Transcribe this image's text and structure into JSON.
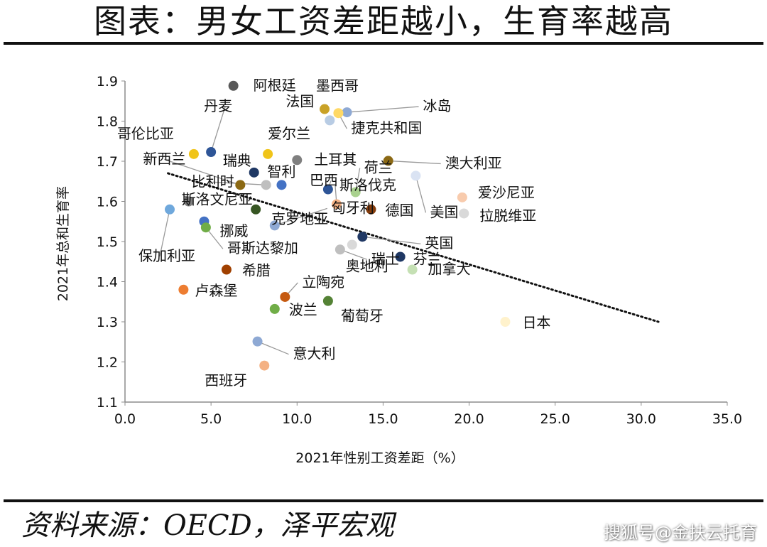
{
  "header": {
    "title": "图表：男女工资差距越小，生育率越高"
  },
  "footer": {
    "source": "资料来源：OECD，泽平宏观",
    "watermark": "搜狐号@金扶云托育"
  },
  "chart_data": {
    "type": "scatter",
    "title": "",
    "xlabel": "2021年性别工资差距（%）",
    "ylabel": "2021年总和生育率",
    "xlim": [
      0,
      35
    ],
    "ylim": [
      1.1,
      1.9
    ],
    "xticks": [
      "0.0",
      "5.0",
      "10.0",
      "15.0",
      "20.0",
      "25.0",
      "30.0",
      "35.0"
    ],
    "yticks": [
      "1.1",
      "1.2",
      "1.3",
      "1.4",
      "1.5",
      "1.6",
      "1.7",
      "1.8",
      "1.9"
    ],
    "grid": false,
    "trendline": {
      "style": "dotted",
      "from": [
        2.5,
        1.67
      ],
      "to": [
        31.0,
        1.3
      ]
    },
    "points": [
      {
        "label": "阿根廷",
        "x": 6.3,
        "y": 1.888,
        "color": "#595959"
      },
      {
        "label": "墨西哥",
        "x": 11.6,
        "y": 1.83,
        "color": "#c9a227"
      },
      {
        "label": "冰岛",
        "x": 12.9,
        "y": 1.822,
        "color": "#8ea9d4"
      },
      {
        "label": "法国",
        "x": 11.9,
        "y": 1.802,
        "color": "#b8cce4"
      },
      {
        "label": "捷克共和国",
        "x": 12.4,
        "y": 1.82,
        "color": "#ffd966"
      },
      {
        "label": "丹麦",
        "x": 5.0,
        "y": 1.723,
        "color": "#2e5597"
      },
      {
        "label": "哥伦比亚",
        "x": 4.0,
        "y": 1.718,
        "color": "#f0c419"
      },
      {
        "label": "爱尔兰",
        "x": 8.3,
        "y": 1.718,
        "color": "#f0c419"
      },
      {
        "label": "土耳其",
        "x": 10.0,
        "y": 1.703,
        "color": "#7f7f7f"
      },
      {
        "label": "澳大利亚",
        "x": 15.3,
        "y": 1.701,
        "color": "#8b6914"
      },
      {
        "label": "瑞典",
        "x": 7.5,
        "y": 1.672,
        "color": "#1f3864"
      },
      {
        "label": "智利",
        "x": 9.1,
        "y": 1.641,
        "color": "#4472c4"
      },
      {
        "label": "新西兰",
        "x": 6.7,
        "y": 1.641,
        "color": "#8b6914"
      },
      {
        "label": "比利时",
        "x": 8.2,
        "y": 1.641,
        "color": "#bfbfbf"
      },
      {
        "label": "巴西",
        "x": 11.8,
        "y": 1.63,
        "color": "#2e5597"
      },
      {
        "label": "荷兰",
        "x": 13.4,
        "y": 1.623,
        "color": "#a9d18e"
      },
      {
        "label": "斯洛伐克",
        "x": 12.3,
        "y": 1.593,
        "color": "#f4b183"
      },
      {
        "label": "美国",
        "x": 16.9,
        "y": 1.664,
        "color": "#dae3f3"
      },
      {
        "label": "爱沙尼亚",
        "x": 19.6,
        "y": 1.61,
        "color": "#f8cbad"
      },
      {
        "label": "拉脱维亚",
        "x": 19.7,
        "y": 1.57,
        "color": "#d9d9d9"
      },
      {
        "label": "德国",
        "x": 14.3,
        "y": 1.58,
        "color": "#843c0c"
      },
      {
        "label": "斯洛文尼亚",
        "x": 3.7,
        "y": 1.6,
        "color": "#7f7f7f"
      },
      {
        "label": "保加利亚",
        "x": 2.6,
        "y": 1.58,
        "color": "#6fa8dc"
      },
      {
        "label": "克罗地亚",
        "x": 7.6,
        "y": 1.58,
        "color": "#375623"
      },
      {
        "label": "挪威",
        "x": 4.6,
        "y": 1.55,
        "color": "#4472c4"
      },
      {
        "label": "哥斯达黎加",
        "x": 4.7,
        "y": 1.535,
        "color": "#70ad47"
      },
      {
        "label": "匈牙利",
        "x": 8.7,
        "y": 1.54,
        "color": "#8ea9d4"
      },
      {
        "label": "英国",
        "x": 13.8,
        "y": 1.512,
        "color": "#203864"
      },
      {
        "label": "瑞士",
        "x": 12.5,
        "y": 1.48,
        "color": "#bfbfbf"
      },
      {
        "label": "芬兰",
        "x": 16.0,
        "y": 1.462,
        "color": "#1f3864"
      },
      {
        "label": "加拿大",
        "x": 16.7,
        "y": 1.43,
        "color": "#c5e0b4"
      },
      {
        "label": "希腊",
        "x": 5.9,
        "y": 1.43,
        "color": "#a04000"
      },
      {
        "label": "奥地利",
        "x": 13.2,
        "y": 1.492,
        "color": "#d9d9d9"
      },
      {
        "label": "卢森堡",
        "x": 3.4,
        "y": 1.38,
        "color": "#ed7d31"
      },
      {
        "label": "立陶宛",
        "x": 9.3,
        "y": 1.362,
        "color": "#c55a11"
      },
      {
        "label": "葡萄牙",
        "x": 11.8,
        "y": 1.352,
        "color": "#548235"
      },
      {
        "label": "波兰",
        "x": 8.7,
        "y": 1.332,
        "color": "#70ad47"
      },
      {
        "label": "日本",
        "x": 22.1,
        "y": 1.3,
        "color": "#fff2cc"
      },
      {
        "label": "意大利",
        "x": 7.7,
        "y": 1.251,
        "color": "#8ea9d4"
      },
      {
        "label": "西班牙",
        "x": 8.1,
        "y": 1.191,
        "color": "#f4b183"
      }
    ]
  }
}
